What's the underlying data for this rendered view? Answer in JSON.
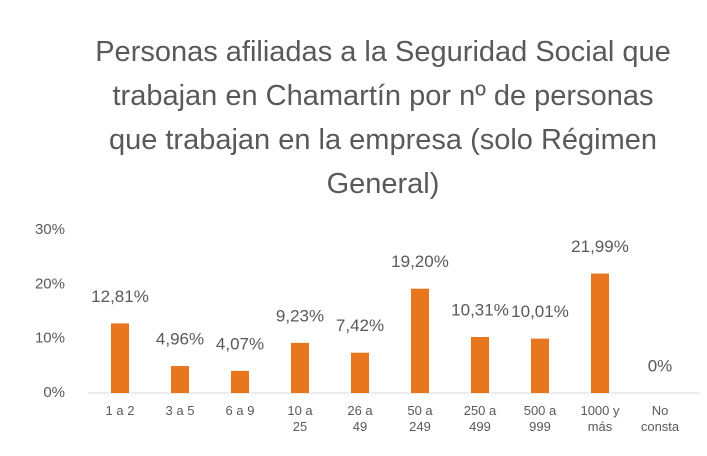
{
  "chart_data": {
    "type": "bar",
    "title": "Personas afiliadas a la Seguridad Social que trabajan en Chamartín por nº de personas que trabajan en la empresa (solo Régimen General)",
    "categories": [
      "1 a 2",
      "3 a 5",
      "6 a 9",
      "10 a 25",
      "26 a 49",
      "50 a 249",
      "250 a 499",
      "500 a 999",
      "1000 y más",
      "No consta"
    ],
    "values": [
      12.81,
      4.96,
      4.07,
      9.23,
      7.42,
      19.2,
      10.31,
      10.01,
      21.99,
      0
    ],
    "value_labels": [
      "12,81%",
      "4,96%",
      "4,07%",
      "9,23%",
      "7,42%",
      "19,20%",
      "10,31%",
      "10,01%",
      "21,99%",
      "0%"
    ],
    "color": "#e8761e",
    "ylim": [
      0,
      30
    ],
    "yticks": [
      {
        "value": 0,
        "label": "0%"
      },
      {
        "value": 10,
        "label": "10%"
      },
      {
        "value": 20,
        "label": "20%"
      },
      {
        "value": 30,
        "label": "30%"
      }
    ],
    "grid": false
  }
}
